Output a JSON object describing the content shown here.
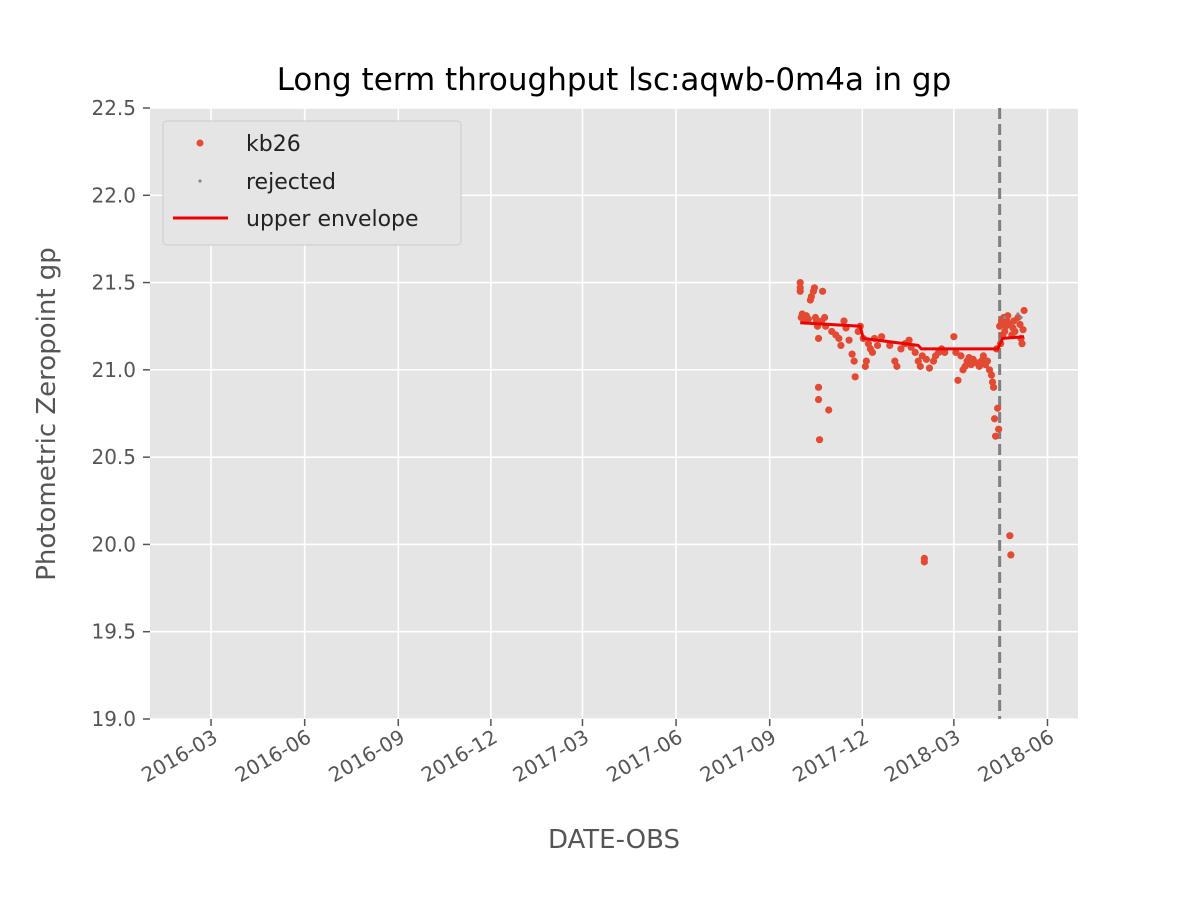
{
  "chart_data": {
    "type": "scatter",
    "title": "Long term throughput  lsc:aqwb-0m4a in gp",
    "xlabel": "DATE-OBS",
    "ylabel": "Photometric Zeropoint gp",
    "x_type": "date",
    "xlim": [
      "2016-01-01",
      "2018-07-01"
    ],
    "ylim": [
      19.0,
      22.5
    ],
    "x_ticks": [
      "2016-03",
      "2016-06",
      "2016-09",
      "2016-12",
      "2017-03",
      "2017-06",
      "2017-09",
      "2017-12",
      "2018-03",
      "2018-06"
    ],
    "y_ticks": [
      "19.0",
      "19.5",
      "20.0",
      "20.5",
      "21.0",
      "21.5",
      "22.0",
      "22.5"
    ],
    "grid": true,
    "legend_position": "top-left",
    "colors": {
      "background": "#e5e5e5",
      "grid": "#ffffff",
      "kb26": "#e24a33",
      "rejected": "#888888",
      "envelope": "#ee0000",
      "vline": "#808080"
    },
    "series": [
      {
        "name": "kb26",
        "kind": "points",
        "points": [
          [
            "2017-10-01",
            21.5
          ],
          [
            "2017-10-01",
            21.47
          ],
          [
            "2017-10-01",
            21.45
          ],
          [
            "2017-10-02",
            21.3
          ],
          [
            "2017-10-03",
            21.32
          ],
          [
            "2017-10-05",
            21.28
          ],
          [
            "2017-10-07",
            21.31
          ],
          [
            "2017-10-09",
            21.29
          ],
          [
            "2017-10-11",
            21.4
          ],
          [
            "2017-10-12",
            21.42
          ],
          [
            "2017-10-14",
            21.45
          ],
          [
            "2017-10-15",
            21.47
          ],
          [
            "2017-10-16",
            21.3
          ],
          [
            "2017-10-17",
            21.28
          ],
          [
            "2017-10-18",
            21.25
          ],
          [
            "2017-10-19",
            21.18
          ],
          [
            "2017-10-19",
            20.9
          ],
          [
            "2017-10-19",
            20.83
          ],
          [
            "2017-10-20",
            20.6
          ],
          [
            "2017-10-22",
            21.28
          ],
          [
            "2017-10-23",
            21.45
          ],
          [
            "2017-10-25",
            21.3
          ],
          [
            "2017-10-26",
            21.25
          ],
          [
            "2017-10-29",
            20.77
          ],
          [
            "2017-11-01",
            21.22
          ],
          [
            "2017-11-05",
            21.2
          ],
          [
            "2017-11-08",
            21.18
          ],
          [
            "2017-11-10",
            21.14
          ],
          [
            "2017-11-13",
            21.28
          ],
          [
            "2017-11-15",
            21.24
          ],
          [
            "2017-11-18",
            21.17
          ],
          [
            "2017-11-21",
            21.09
          ],
          [
            "2017-11-23",
            21.05
          ],
          [
            "2017-11-24",
            20.96
          ],
          [
            "2017-11-27",
            21.22
          ],
          [
            "2017-11-29",
            21.25
          ],
          [
            "2017-12-02",
            21.18
          ],
          [
            "2017-12-04",
            21.02
          ],
          [
            "2017-12-05",
            21.05
          ],
          [
            "2017-12-07",
            21.15
          ],
          [
            "2017-12-09",
            21.12
          ],
          [
            "2017-12-11",
            21.1
          ],
          [
            "2017-12-13",
            21.18
          ],
          [
            "2017-12-16",
            21.14
          ],
          [
            "2017-12-20",
            21.19
          ],
          [
            "2017-12-28",
            21.14
          ],
          [
            "2018-01-02",
            21.05
          ],
          [
            "2018-01-04",
            21.02
          ],
          [
            "2018-01-08",
            21.12
          ],
          [
            "2018-01-12",
            21.15
          ],
          [
            "2018-01-16",
            21.17
          ],
          [
            "2018-01-18",
            21.13
          ],
          [
            "2018-01-22",
            21.1
          ],
          [
            "2018-01-25",
            21.05
          ],
          [
            "2018-01-27",
            21.02
          ],
          [
            "2018-01-29",
            21.08
          ],
          [
            "2018-01-31",
            19.92
          ],
          [
            "2018-01-31",
            19.9
          ],
          [
            "2018-02-02",
            21.06
          ],
          [
            "2018-02-05",
            21.01
          ],
          [
            "2018-02-09",
            21.05
          ],
          [
            "2018-02-11",
            21.08
          ],
          [
            "2018-02-14",
            21.1
          ],
          [
            "2018-02-17",
            21.12
          ],
          [
            "2018-02-20",
            21.1
          ],
          [
            "2018-03-01",
            21.19
          ],
          [
            "2018-03-03",
            21.1
          ],
          [
            "2018-03-05",
            20.94
          ],
          [
            "2018-03-08",
            21.08
          ],
          [
            "2018-03-10",
            21.0
          ],
          [
            "2018-03-12",
            21.02
          ],
          [
            "2018-03-14",
            21.05
          ],
          [
            "2018-03-16",
            21.07
          ],
          [
            "2018-03-18",
            21.03
          ],
          [
            "2018-03-20",
            21.06
          ],
          [
            "2018-03-23",
            21.04
          ],
          [
            "2018-03-26",
            21.02
          ],
          [
            "2018-03-28",
            21.05
          ],
          [
            "2018-03-30",
            21.08
          ],
          [
            "2018-04-01",
            21.03
          ],
          [
            "2018-04-03",
            21.05
          ],
          [
            "2018-04-05",
            21.0
          ],
          [
            "2018-04-07",
            20.97
          ],
          [
            "2018-04-08",
            20.93
          ],
          [
            "2018-04-09",
            20.9
          ],
          [
            "2018-04-10",
            20.72
          ],
          [
            "2018-04-11",
            20.62
          ],
          [
            "2018-04-12",
            21.12
          ],
          [
            "2018-04-13",
            20.78
          ],
          [
            "2018-04-14",
            20.66
          ],
          [
            "2018-04-15",
            21.25
          ],
          [
            "2018-04-16",
            21.15
          ],
          [
            "2018-04-17",
            21.28
          ],
          [
            "2018-04-18",
            21.2
          ],
          [
            "2018-04-19",
            21.3
          ],
          [
            "2018-04-20",
            21.22
          ],
          [
            "2018-04-21",
            21.25
          ],
          [
            "2018-04-22",
            21.28
          ],
          [
            "2018-04-23",
            21.31
          ],
          [
            "2018-04-24",
            21.26
          ],
          [
            "2018-04-25",
            20.05
          ],
          [
            "2018-04-26",
            19.94
          ],
          [
            "2018-04-27",
            21.2
          ],
          [
            "2018-04-28",
            21.24
          ],
          [
            "2018-04-29",
            21.28
          ],
          [
            "2018-04-30",
            21.22
          ],
          [
            "2018-05-03",
            21.3
          ],
          [
            "2018-05-05",
            21.26
          ],
          [
            "2018-05-06",
            21.18
          ],
          [
            "2018-05-07",
            21.15
          ],
          [
            "2018-05-08",
            21.23
          ],
          [
            "2018-05-09",
            21.34
          ]
        ]
      },
      {
        "name": "rejected",
        "kind": "points",
        "points": [
          [
            "2018-04-20",
            21.3
          ],
          [
            "2018-05-03",
            21.32
          ],
          [
            "2018-05-06",
            21.3
          ]
        ]
      },
      {
        "name": "upper envelope",
        "kind": "line",
        "points": [
          [
            "2017-10-01",
            21.27
          ],
          [
            "2017-11-29",
            21.25
          ],
          [
            "2017-12-02",
            21.18
          ],
          [
            "2018-01-25",
            21.14
          ],
          [
            "2018-01-28",
            21.12
          ],
          [
            "2018-04-13",
            21.12
          ],
          [
            "2018-04-18",
            21.18
          ],
          [
            "2018-05-09",
            21.19
          ]
        ]
      }
    ],
    "vline": {
      "x": "2018-04-15",
      "style": "dashed"
    }
  }
}
